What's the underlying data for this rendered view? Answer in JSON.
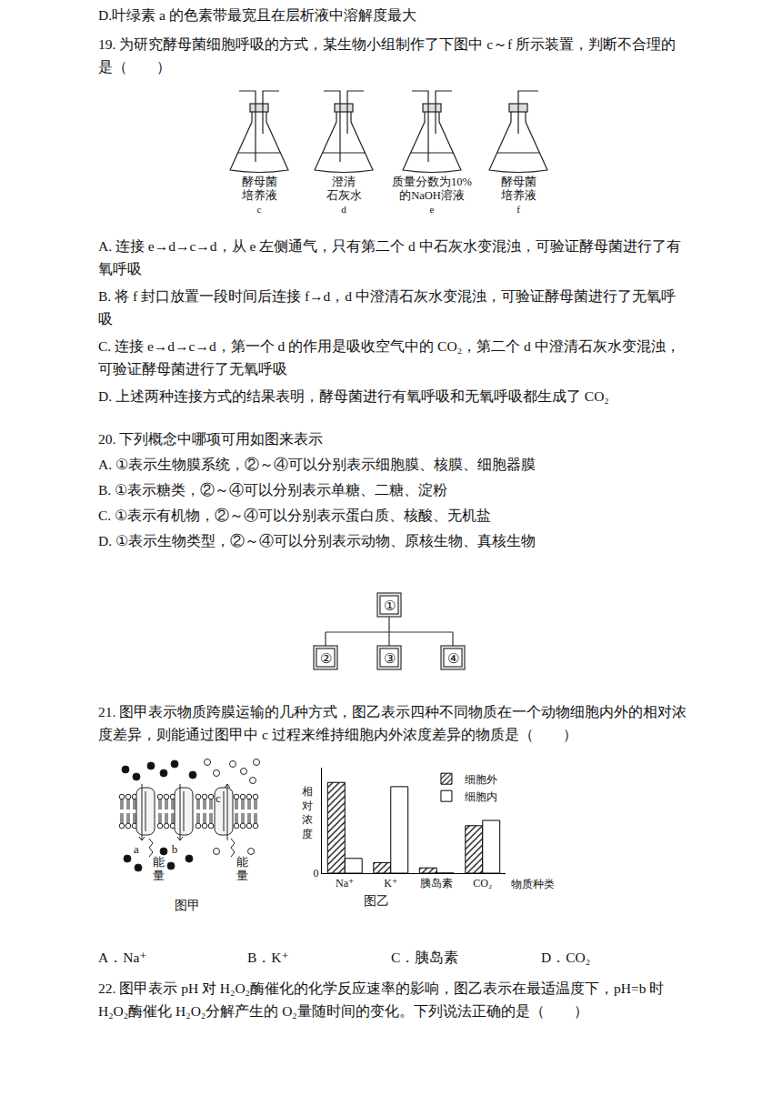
{
  "document": {
    "q18_option_d": "D.叶绿素 a 的色素带最宽且在层析液中溶解度最大",
    "q19": {
      "stem": "19. 为研究酵母菌细胞呼吸的方式，某生物小组制作了下图中 c～f 所示装置，判断不合理的是（　　）",
      "apparatus": [
        {
          "label": [
            "酵母菌",
            "培养液"
          ],
          "letter": "c"
        },
        {
          "label": [
            "澄清",
            "石灰水"
          ],
          "letter": "d"
        },
        {
          "label": [
            "质量分数为10%",
            "的NaOH溶液"
          ],
          "letter": "e"
        },
        {
          "label": [
            "酵母菌",
            "培养液"
          ],
          "letter": "f"
        }
      ],
      "options": [
        "A. 连接 e→d→c→d，从 e 左侧通气，只有第二个 d 中石灰水变混浊，可验证酵母菌进行了有氧呼吸",
        "B. 将 f 封口放置一段时间后连接 f→d，d 中澄清石灰水变混浊，可验证酵母菌进行了无氧呼吸",
        "C. 连接 e→d→c→d，第一个 d 的作用是吸收空气中的 CO₂，第二个 d 中澄清石灰水变混浊，可验证酵母菌进行了无氧呼吸",
        "D. 上述两种连接方式的结果表明，酵母菌进行有氧呼吸和无氧呼吸都生成了 CO₂"
      ]
    },
    "q20": {
      "stem": "20. 下列概念中哪项可用如图来表示",
      "options": [
        "A. ①表示生物膜系统，②～④可以分别表示细胞膜、核膜、细胞器膜",
        "B. ①表示糖类，②～④可以分别表示单糖、二糖、淀粉",
        "C. ①表示有机物，②～④可以分别表示蛋白质、核酸、无机盐",
        "D. ①表示生物类型，②～④可以分别表示动物、原核生物、真核生物"
      ],
      "diagram": {
        "root": "①",
        "children": [
          "②",
          "③",
          "④"
        ]
      }
    },
    "q21": {
      "stem": "21. 图甲表示物质跨膜运输的几种方式，图乙表示四种不同物质在一个动物细胞内外的相对浓度差异，则能通过图甲中 c 过程来维持细胞内外浓度差异的物质是（　　）",
      "figure_a": {
        "process_labels": [
          "a",
          "b",
          "c"
        ],
        "energy_labels": [
          "能量",
          "能量"
        ],
        "caption": "图甲"
      },
      "figure_b_caption": "图乙",
      "options": [
        "A．Na⁺",
        "B．K⁺",
        "C．胰岛素",
        "D．CO₂"
      ]
    },
    "q22": {
      "stem": "22. 图甲表示 pH 对 H₂O₂酶催化的化学反应速率的影响，图乙表示在最适温度下，pH=b 时 H₂O₂酶催化 H₂O₂分解产生的 O₂量随时间的变化。下列说法正确的是（　　）"
    }
  },
  "chart_data": {
    "type": "bar",
    "categories": [
      "Na⁺",
      "K⁺",
      "胰岛素",
      "CO₂"
    ],
    "series": [
      {
        "name": "细胞外",
        "color": "#ffffff",
        "marker": "hatched",
        "values": [
          0.86,
          0.1,
          0.05,
          0.45
        ]
      },
      {
        "name": "细胞内",
        "color": "#ffffff",
        "marker": "plain",
        "values": [
          0.14,
          0.82,
          0,
          0.5
        ]
      }
    ],
    "x_label": "物质种类",
    "y_label": "相对浓度",
    "ylim": [
      0,
      1
    ],
    "yticks": [
      0
    ],
    "grid": false,
    "legend": "upper right"
  }
}
